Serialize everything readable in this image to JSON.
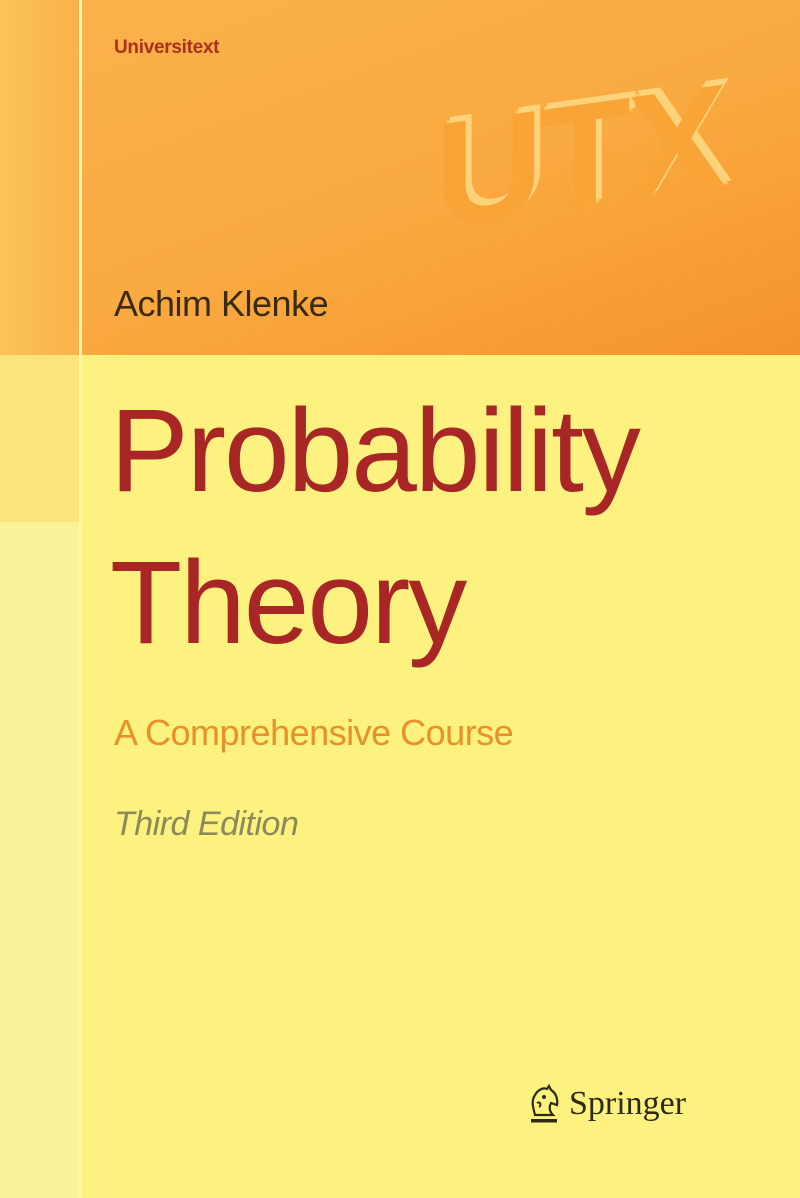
{
  "cover": {
    "series": "Universitext",
    "series_logo_text": "UTX",
    "author": "Achim Klenke",
    "title_line1": "Probability",
    "title_line2": "Theory",
    "subtitle": "A Comprehensive Course",
    "edition": "Third Edition",
    "publisher": "Springer",
    "publisher_icon": "knight-chess-piece-icon"
  },
  "colors": {
    "band_orange": "#f9a93f",
    "background_yellow": "#fdf27f",
    "title_red": "#a82626",
    "subtitle_orange": "#e8902a",
    "series_red": "#a8321e"
  }
}
